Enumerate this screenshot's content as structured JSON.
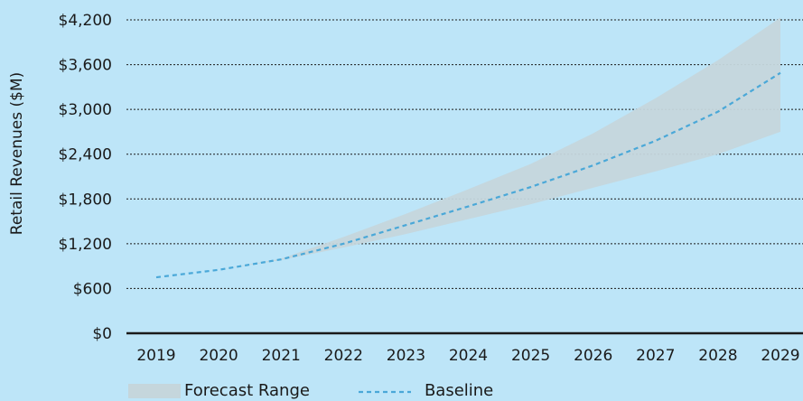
{
  "chart_data": {
    "type": "area",
    "title": "",
    "xlabel": "",
    "ylabel": "Retail Revenues ($M)",
    "x": [
      "2019",
      "2020",
      "2021",
      "2022",
      "2023",
      "2024",
      "2025",
      "2026",
      "2027",
      "2028",
      "2029"
    ],
    "ylim": [
      0,
      4200
    ],
    "yticks": [
      0,
      600,
      1200,
      1800,
      2400,
      3000,
      3600,
      4200
    ],
    "ytick_labels": [
      "$0",
      "$600",
      "$1,200",
      "$1,800",
      "$2,400",
      "$3,000",
      "$3,600",
      "$4,200"
    ],
    "grid": "horizontal dotted",
    "series": [
      {
        "name": "Forecast Range",
        "kind": "band",
        "color": "#c5d6dc",
        "lower": [
          750,
          850,
          980,
          1150,
          1330,
          1530,
          1730,
          1950,
          2170,
          2400,
          2700
        ],
        "upper": [
          750,
          850,
          1000,
          1290,
          1600,
          1930,
          2270,
          2680,
          3150,
          3660,
          4230
        ]
      },
      {
        "name": "Baseline",
        "kind": "line",
        "style": "dashed",
        "color": "#4aa8d8",
        "values": [
          750,
          850,
          990,
          1200,
          1450,
          1700,
          1960,
          2250,
          2580,
          2970,
          3490
        ]
      }
    ],
    "legend": "bottom-left"
  }
}
